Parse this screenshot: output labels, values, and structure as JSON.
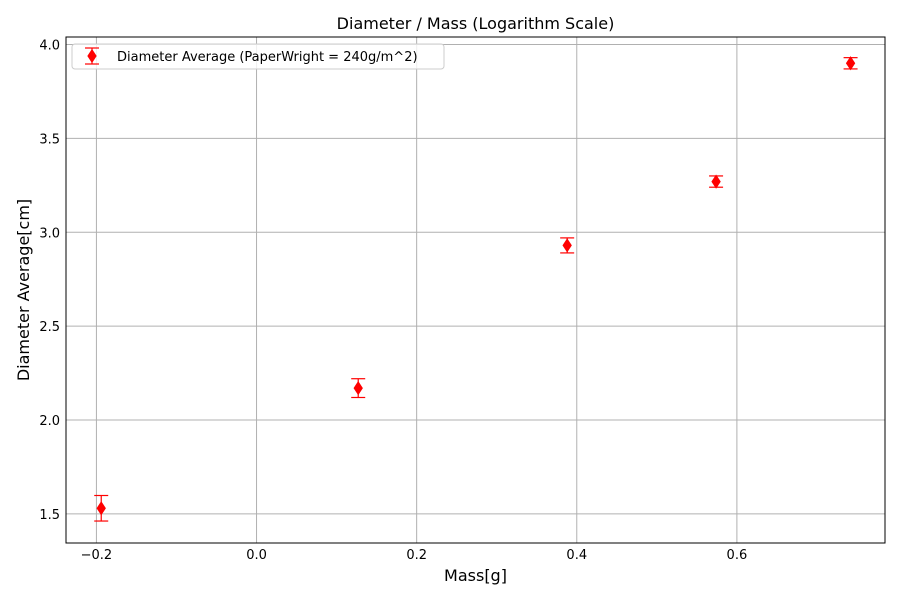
{
  "chart_data": {
    "type": "scatter",
    "title": "Diameter / Mass (Logarithm Scale)",
    "xlabel": "Mass[g]",
    "ylabel": "Diameter Average[cm]",
    "xlim": [
      -0.238,
      0.785
    ],
    "ylim": [
      1.345,
      4.04
    ],
    "x_ticks": [
      {
        "value": -0.2,
        "label": "−0.2"
      },
      {
        "value": 0.0,
        "label": "0.0"
      },
      {
        "value": 0.2,
        "label": "0.2"
      },
      {
        "value": 0.4,
        "label": "0.4"
      },
      {
        "value": 0.6,
        "label": "0.6"
      }
    ],
    "y_ticks": [
      {
        "value": 1.5,
        "label": "1.5"
      },
      {
        "value": 2.0,
        "label": "2.0"
      },
      {
        "value": 2.5,
        "label": "2.5"
      },
      {
        "value": 3.0,
        "label": "3.0"
      },
      {
        "value": 3.5,
        "label": "3.5"
      },
      {
        "value": 4.0,
        "label": "4.0"
      }
    ],
    "grid": true,
    "legend_position": "top-left",
    "series": [
      {
        "name": "Diameter Average (PaperWright = 240g/m^2)",
        "color": "#ff0000",
        "marker": "diamond",
        "points": [
          {
            "x": -0.194,
            "y": 1.53,
            "err": 0.068
          },
          {
            "x": 0.127,
            "y": 2.17,
            "err": 0.05
          },
          {
            "x": 0.388,
            "y": 2.93,
            "err": 0.04
          },
          {
            "x": 0.574,
            "y": 3.27,
            "err": 0.03
          },
          {
            "x": 0.742,
            "y": 3.9,
            "err": 0.03
          }
        ]
      }
    ]
  }
}
